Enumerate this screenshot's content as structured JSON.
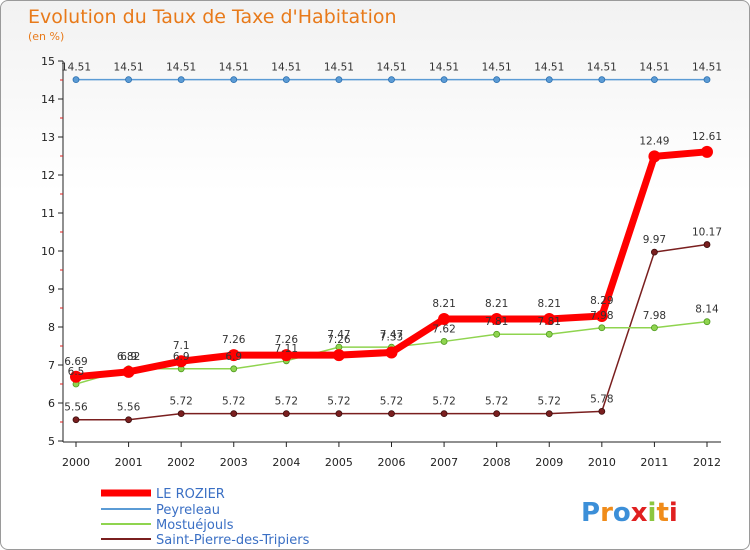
{
  "title": "Evolution du Taux de Taxe d'Habitation",
  "unit": "(en %)",
  "logo_text": "Proxiti",
  "chart_data": {
    "type": "line",
    "title": "Evolution du Taux de Taxe d'Habitation",
    "ylabel": "(en %)",
    "xlabel": "",
    "x": [
      "2000",
      "2001",
      "2002",
      "2003",
      "2004",
      "2005",
      "2006",
      "2007",
      "2008",
      "2009",
      "2010",
      "2011",
      "2012"
    ],
    "ylim": [
      5,
      15
    ],
    "yticks": [
      "5",
      "6",
      "7",
      "8",
      "9",
      "10",
      "11",
      "12",
      "13",
      "14",
      "15"
    ],
    "grid": false,
    "legend": "bottom-left",
    "series": [
      {
        "name": "LE ROZIER",
        "color": "#ff0000",
        "values": [
          6.69,
          6.82,
          7.1,
          7.26,
          7.26,
          7.26,
          7.33,
          8.21,
          8.21,
          8.21,
          8.29,
          12.49,
          12.61
        ],
        "labels": [
          "6.69",
          "6.82",
          "7.1",
          "7.26",
          "7.26",
          "7.26",
          "7.33",
          "8.21",
          "8.21",
          "8.21",
          "8.29",
          "12.49",
          "12.61"
        ]
      },
      {
        "name": "Peyreleau",
        "color": "#5b9bd5",
        "values": [
          14.51,
          14.51,
          14.51,
          14.51,
          14.51,
          14.51,
          14.51,
          14.51,
          14.51,
          14.51,
          14.51,
          14.51,
          14.51
        ],
        "labels": [
          "14.51",
          "14.51",
          "14.51",
          "14.51",
          "14.51",
          "14.51",
          "14.51",
          "14.51",
          "14.51",
          "14.51",
          "14.51",
          "14.51",
          "14.51"
        ]
      },
      {
        "name": "Mostuéjouls",
        "color": "#8fd44f",
        "values": [
          6.5,
          6.9,
          6.9,
          6.9,
          7.11,
          7.47,
          7.47,
          7.62,
          7.81,
          7.81,
          7.98,
          7.98,
          8.14
        ],
        "labels": [
          "6.5",
          "6.9",
          "6.9",
          "6.9",
          "7.11",
          "7.47",
          "7.47",
          "7.62",
          "7.81",
          "7.81",
          "7.98",
          "7.98",
          "8.14"
        ]
      },
      {
        "name": "Saint-Pierre-des-Tripiers",
        "color": "#7a1f1f",
        "values": [
          5.56,
          5.56,
          5.72,
          5.72,
          5.72,
          5.72,
          5.72,
          5.72,
          5.72,
          5.72,
          5.78,
          9.97,
          10.17
        ],
        "labels": [
          "5.56",
          "5.56",
          "5.72",
          "5.72",
          "5.72",
          "5.72",
          "5.72",
          "5.72",
          "5.72",
          "5.72",
          "5.78",
          "9.97",
          "10.17"
        ]
      }
    ]
  }
}
